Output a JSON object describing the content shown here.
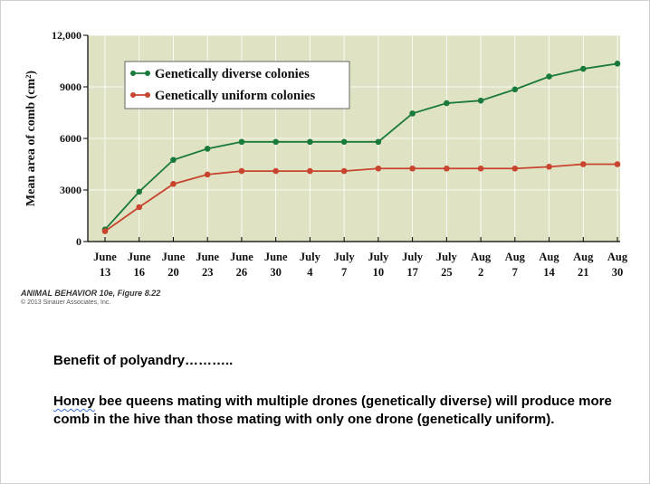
{
  "chart_data": {
    "type": "line",
    "title": "",
    "xlabel": "",
    "ylabel": "Mean area of comb (cm²)",
    "ylim": [
      0,
      12000
    ],
    "yticks": [
      "0",
      "3000",
      "6000",
      "9000",
      "12,000"
    ],
    "ytick_values": [
      0,
      3000,
      6000,
      9000,
      12000
    ],
    "categories": [
      {
        "month": "June",
        "day": "13"
      },
      {
        "month": "June",
        "day": "16"
      },
      {
        "month": "June",
        "day": "20"
      },
      {
        "month": "June",
        "day": "23"
      },
      {
        "month": "June",
        "day": "26"
      },
      {
        "month": "June",
        "day": "30"
      },
      {
        "month": "July",
        "day": "4"
      },
      {
        "month": "July",
        "day": "7"
      },
      {
        "month": "July",
        "day": "10"
      },
      {
        "month": "July",
        "day": "17"
      },
      {
        "month": "July",
        "day": "25"
      },
      {
        "month": "Aug",
        "day": "2"
      },
      {
        "month": "Aug",
        "day": "7"
      },
      {
        "month": "Aug",
        "day": "14"
      },
      {
        "month": "Aug",
        "day": "21"
      },
      {
        "month": "Aug",
        "day": "30"
      }
    ],
    "series": [
      {
        "name": "Genetically diverse colonies",
        "color": "#1a7a3c",
        "values": [
          700,
          2900,
          4750,
          5400,
          5800,
          5800,
          5800,
          5800,
          5800,
          7450,
          8050,
          8200,
          8850,
          9600,
          10050,
          10350
        ]
      },
      {
        "name": "Genetically uniform colonies",
        "color": "#c8442e",
        "values": [
          600,
          2000,
          3350,
          3900,
          4100,
          4100,
          4100,
          4100,
          4250,
          4250,
          4250,
          4250,
          4250,
          4350,
          4500,
          4500
        ]
      }
    ],
    "legend": "top-left",
    "plot_background": "#dfe3c4",
    "grid_color": "#ffffff"
  },
  "credit": {
    "title": "ANIMAL BEHAVIOR 10e, Figure 8.22",
    "copyright": "© 2013 Sinauer Associates, Inc."
  },
  "note": {
    "heading": "Benefit of polyandry………..",
    "body_first_word": "Honey",
    "body_rest": " bee queens mating with multiple drones (genetically diverse) will produce more comb in the hive than those mating with only one drone (genetically uniform)."
  }
}
